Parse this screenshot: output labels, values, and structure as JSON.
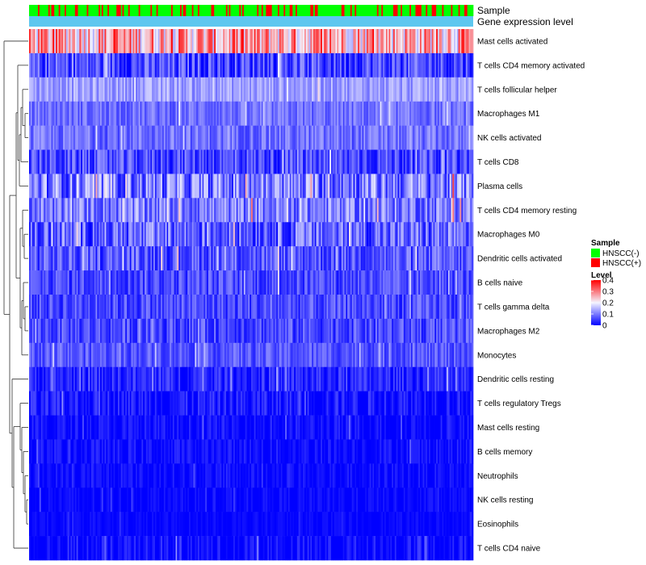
{
  "chart_data": {
    "type": "heatmap",
    "title": "",
    "n_samples": 300,
    "color_scale": {
      "min": 0,
      "max": 0.4,
      "low_color": "#0000ff",
      "mid_color": "#f4f4ff",
      "high_color": "#ff0000"
    },
    "annotation_tracks": [
      {
        "name": "Sample",
        "label": "Sample",
        "type": "categorical"
      },
      {
        "name": "Gene expression level",
        "label": "Gene expression level",
        "type": "constant",
        "color": "#5ec7ef"
      }
    ],
    "rows": [
      {
        "label": "Mast cells activated",
        "base": 0.26,
        "spread": 0.12
      },
      {
        "label": "T cells CD4 memory activated",
        "base": 0.06,
        "spread": 0.07
      },
      {
        "label": "T cells follicular helper",
        "base": 0.13,
        "spread": 0.04
      },
      {
        "label": "Macrophages M1",
        "base": 0.09,
        "spread": 0.04
      },
      {
        "label": "NK cells activated",
        "base": 0.09,
        "spread": 0.045
      },
      {
        "label": "T cells CD8",
        "base": 0.06,
        "spread": 0.06
      },
      {
        "label": "Plasma cells",
        "base": 0.1,
        "spread": 0.09
      },
      {
        "label": "T cells CD4 memory resting",
        "base": 0.1,
        "spread": 0.07
      },
      {
        "label": "Macrophages M0",
        "base": 0.08,
        "spread": 0.08
      },
      {
        "label": "Dendritic cells activated",
        "base": 0.07,
        "spread": 0.06
      },
      {
        "label": "B cells naive",
        "base": 0.06,
        "spread": 0.05
      },
      {
        "label": "T cells gamma delta",
        "base": 0.06,
        "spread": 0.05
      },
      {
        "label": "Macrophages M2",
        "base": 0.06,
        "spread": 0.05
      },
      {
        "label": "Monocytes",
        "base": 0.07,
        "spread": 0.04
      },
      {
        "label": "Dendritic cells resting",
        "base": 0.03,
        "spread": 0.04
      },
      {
        "label": "T cells regulatory  Tregs",
        "base": 0.02,
        "spread": 0.04
      },
      {
        "label": "Mast cells resting",
        "base": 0.01,
        "spread": 0.03
      },
      {
        "label": "B cells memory",
        "base": 0.01,
        "spread": 0.03
      },
      {
        "label": "Neutrophils",
        "base": 0.008,
        "spread": 0.025
      },
      {
        "label": "NK cells resting",
        "base": 0.005,
        "spread": 0.02
      },
      {
        "label": "Eosinophils",
        "base": 0.003,
        "spread": 0.015
      },
      {
        "label": "T cells CD4 naive",
        "base": 0.005,
        "spread": 0.04
      }
    ],
    "legend": {
      "sample": {
        "title": "Sample",
        "items": [
          {
            "label": "HNSCC(-)",
            "color": "#00ff00"
          },
          {
            "label": "HNSCC(+)",
            "color": "#ff0000"
          }
        ]
      },
      "level": {
        "title": "Level",
        "ticks": [
          {
            "label": "0.4",
            "value": 0.4
          },
          {
            "label": "0.3",
            "value": 0.3
          },
          {
            "label": "0.2",
            "value": 0.2
          },
          {
            "label": "0.1",
            "value": 0.1
          },
          {
            "label": "0",
            "value": 0
          }
        ]
      }
    },
    "dendrogram": {
      "position": "left",
      "rows_clustered": true
    }
  }
}
